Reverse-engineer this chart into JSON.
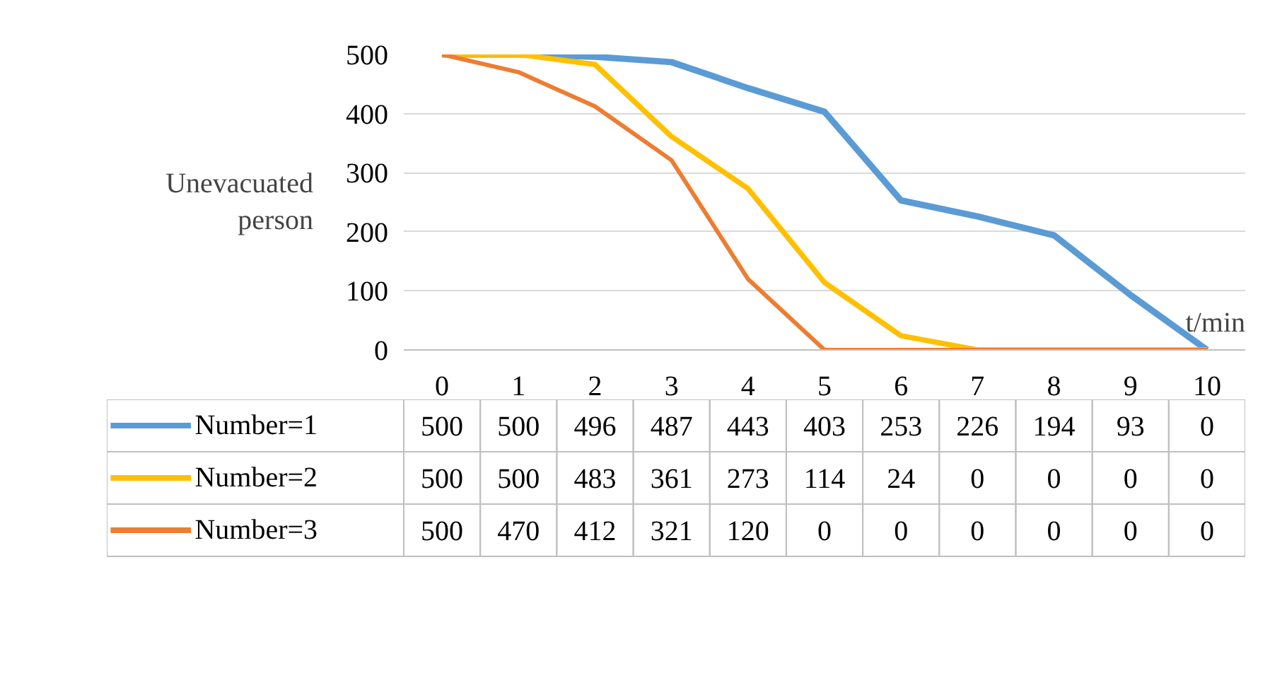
{
  "chart_data": {
    "type": "line",
    "xlabel": "t/min",
    "ylabel": "Unevacuated person",
    "categories": [
      "0",
      "1",
      "2",
      "3",
      "4",
      "5",
      "6",
      "7",
      "8",
      "9",
      "10"
    ],
    "series": [
      {
        "name": "Number=1",
        "color": "#5b9bd5",
        "values": [
          500,
          500,
          496,
          487,
          443,
          403,
          253,
          226,
          194,
          93,
          0
        ]
      },
      {
        "name": "Number=2",
        "color": "#ffc000",
        "values": [
          500,
          500,
          483,
          361,
          273,
          114,
          24,
          0,
          0,
          0,
          0
        ]
      },
      {
        "name": "Number=3",
        "color": "#ed7d31",
        "values": [
          500,
          470,
          412,
          321,
          120,
          0,
          0,
          0,
          0,
          0,
          0
        ]
      }
    ],
    "ylim": [
      0,
      500
    ],
    "yticks": [
      0,
      100,
      200,
      300,
      400,
      500
    ],
    "grid": "y",
    "legend": "bottom",
    "data_labels": true
  }
}
